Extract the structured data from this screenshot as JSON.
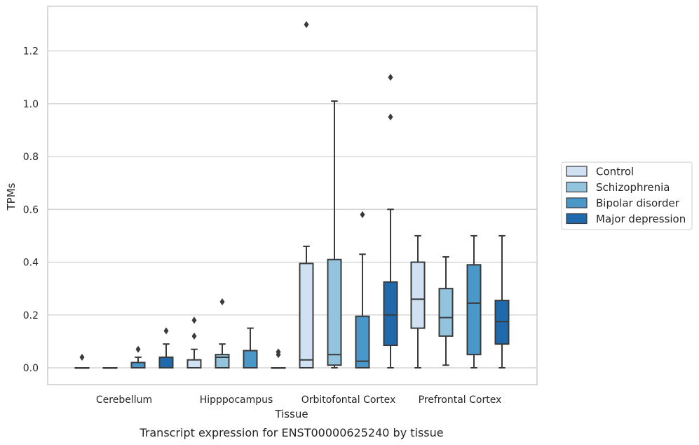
{
  "chart_data": {
    "type": "boxplot",
    "xlabel": "Tissue",
    "ylabel": "TPMs",
    "caption": "Transcript expression for ENST00000625240 by tissue",
    "ylim": [
      -0.065,
      1.37
    ],
    "yticks": [
      0.0,
      0.2,
      0.4,
      0.6,
      0.8,
      1.0,
      1.2
    ],
    "ytick_labels": [
      "0.0",
      "0.2",
      "0.4",
      "0.6",
      "0.8",
      "1.0",
      "1.2"
    ],
    "grid": "horizontal",
    "legend_position": "right",
    "categories": [
      "Cerebellum",
      "Hipppocampus",
      "Orbitofontal Cortex",
      "Prefrontal Cortex"
    ],
    "series": [
      {
        "name": "Control",
        "color": "#cfe1f2",
        "boxes": [
          {
            "whislo": 0.0,
            "q1": 0.0,
            "med": 0.0,
            "q3": 0.0,
            "whishi": 0.0,
            "fliers": [
              0.04
            ]
          },
          {
            "whislo": 0.0,
            "q1": 0.0,
            "med": 0.0,
            "q3": 0.03,
            "whishi": 0.07,
            "fliers": [
              0.12,
              0.18
            ]
          },
          {
            "whislo": 0.0,
            "q1": 0.0,
            "med": 0.03,
            "q3": 0.395,
            "whishi": 0.46,
            "fliers": [
              1.3
            ]
          },
          {
            "whislo": 0.0,
            "q1": 0.15,
            "med": 0.26,
            "q3": 0.4,
            "whishi": 0.5,
            "fliers": []
          }
        ]
      },
      {
        "name": "Schizophrenia",
        "color": "#93c4de",
        "boxes": [
          {
            "whislo": 0.0,
            "q1": 0.0,
            "med": 0.0,
            "q3": 0.0,
            "whishi": 0.0,
            "fliers": []
          },
          {
            "whislo": 0.0,
            "q1": 0.0,
            "med": 0.04,
            "q3": 0.05,
            "whishi": 0.09,
            "fliers": [
              0.25
            ]
          },
          {
            "whislo": 0.0,
            "q1": 0.01,
            "med": 0.05,
            "q3": 0.41,
            "whishi": 1.01,
            "fliers": []
          },
          {
            "whislo": 0.01,
            "q1": 0.12,
            "med": 0.19,
            "q3": 0.3,
            "whishi": 0.42,
            "fliers": []
          }
        ]
      },
      {
        "name": "Bipolar disorder",
        "color": "#4a98c9",
        "boxes": [
          {
            "whislo": 0.0,
            "q1": 0.0,
            "med": 0.0,
            "q3": 0.02,
            "whishi": 0.04,
            "fliers": [
              0.07
            ]
          },
          {
            "whislo": 0.0,
            "q1": 0.0,
            "med": 0.0,
            "q3": 0.065,
            "whishi": 0.15,
            "fliers": []
          },
          {
            "whislo": 0.0,
            "q1": 0.0,
            "med": 0.025,
            "q3": 0.195,
            "whishi": 0.43,
            "fliers": [
              0.58
            ]
          },
          {
            "whislo": 0.0,
            "q1": 0.05,
            "med": 0.245,
            "q3": 0.39,
            "whishi": 0.5,
            "fliers": []
          }
        ]
      },
      {
        "name": "Major depression",
        "color": "#1f69ac",
        "boxes": [
          {
            "whislo": 0.0,
            "q1": 0.0,
            "med": 0.0,
            "q3": 0.04,
            "whishi": 0.09,
            "fliers": [
              0.14
            ]
          },
          {
            "whislo": 0.0,
            "q1": 0.0,
            "med": 0.0,
            "q3": 0.0,
            "whishi": 0.0,
            "fliers": [
              0.05,
              0.06
            ]
          },
          {
            "whislo": 0.0,
            "q1": 0.085,
            "med": 0.2,
            "q3": 0.325,
            "whishi": 0.6,
            "fliers": [
              0.95,
              1.1
            ]
          },
          {
            "whislo": 0.0,
            "q1": 0.09,
            "med": 0.175,
            "q3": 0.255,
            "whishi": 0.5,
            "fliers": []
          }
        ]
      }
    ]
  }
}
